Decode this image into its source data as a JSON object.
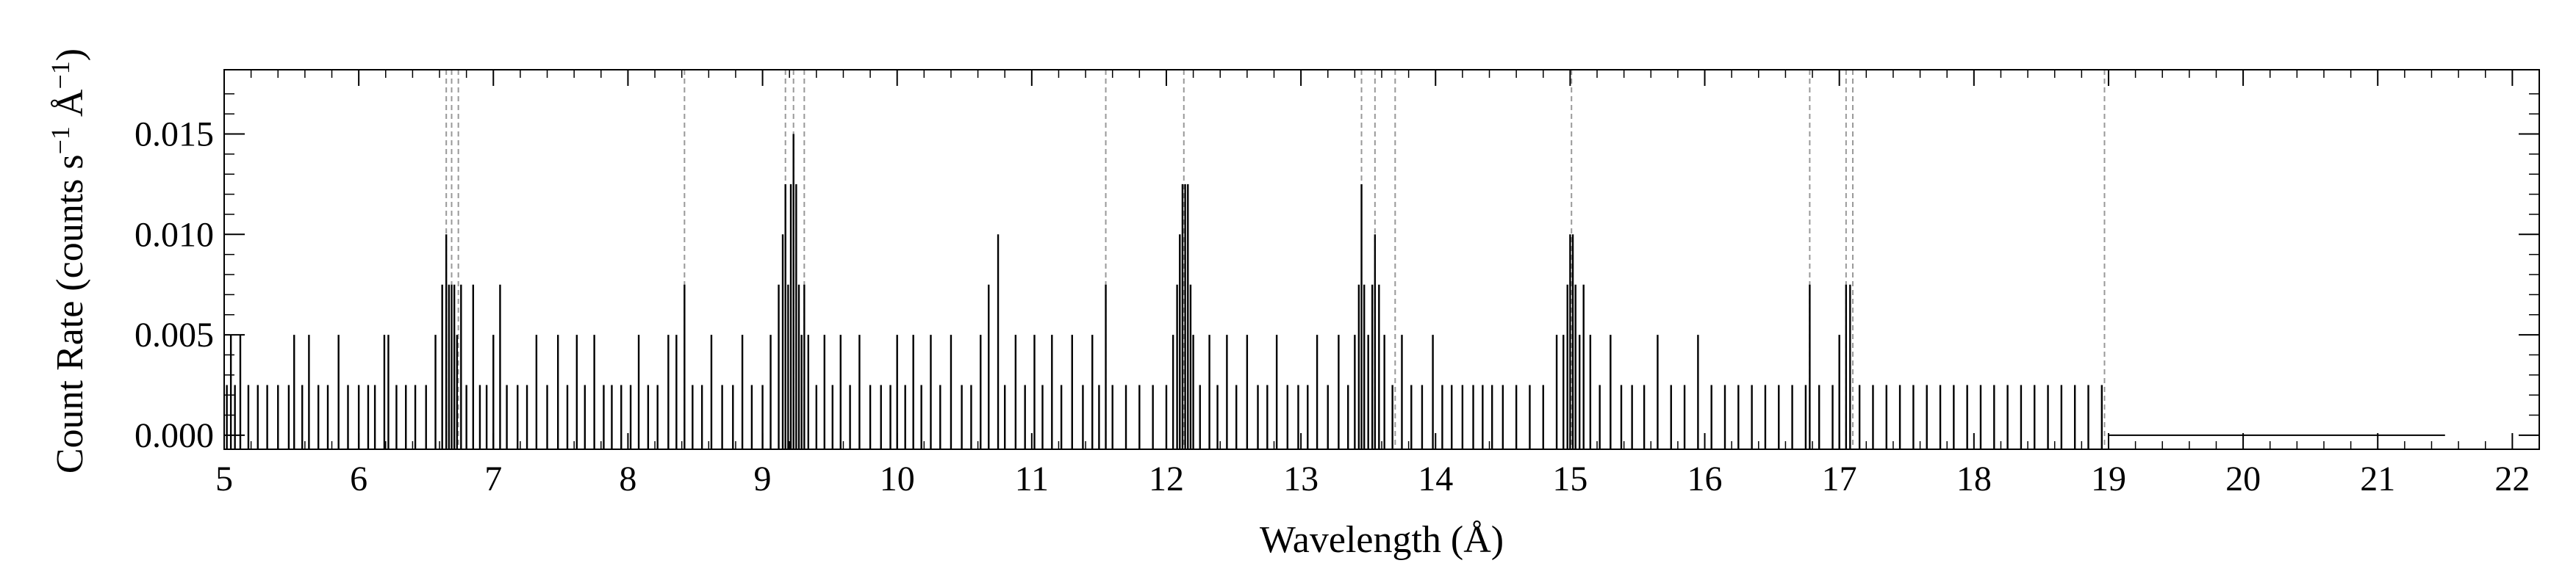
{
  "chart_data": {
    "type": "line",
    "xlabel": "Wavelength (Å)",
    "ylabel_main": "Count Rate (counts s",
    "ylabel_sup1": "−1",
    "ylabel_mid": " Å",
    "ylabel_sup2": "−1",
    "ylabel_end": ")",
    "xlim": [
      5,
      22.2
    ],
    "ylim": [
      -0.0007,
      0.0182
    ],
    "grid": false,
    "x_ticks": [
      5,
      6,
      7,
      8,
      9,
      10,
      11,
      12,
      13,
      14,
      15,
      16,
      17,
      18,
      19,
      20,
      21,
      22
    ],
    "x_tick_labels": [
      "5",
      "6",
      "7",
      "8",
      "9",
      "10",
      "11",
      "12",
      "13",
      "14",
      "15",
      "16",
      "17",
      "18",
      "19",
      "20",
      "21",
      "22"
    ],
    "y_ticks": [
      0.0,
      0.005,
      0.01,
      0.015
    ],
    "y_tick_labels": [
      "0.000",
      "0.005",
      "0.010",
      "0.015"
    ],
    "line_markers_x": [
      6.65,
      6.69,
      6.74,
      8.42,
      9.17,
      9.23,
      9.31,
      11.55,
      12.13,
      13.45,
      13.55,
      13.7,
      15.01,
      16.78,
      17.05,
      17.1,
      18.97
    ],
    "series": [
      {
        "values": [
          [
            5.02,
            0.0025
          ],
          [
            5.05,
            0.005
          ],
          [
            5.08,
            0.0025
          ],
          [
            5.12,
            0.005
          ],
          [
            5.18,
            0.0025
          ],
          [
            5.25,
            0.0025
          ],
          [
            5.32,
            0.0025
          ],
          [
            5.4,
            0.0025
          ],
          [
            5.48,
            0.0025
          ],
          [
            5.52,
            0.005
          ],
          [
            5.58,
            0.0025
          ],
          [
            5.63,
            0.005
          ],
          [
            5.7,
            0.0025
          ],
          [
            5.77,
            0.0025
          ],
          [
            5.85,
            0.005
          ],
          [
            5.92,
            0.0025
          ],
          [
            6.0,
            0.0025
          ],
          [
            6.07,
            0.0025
          ],
          [
            6.12,
            0.0025
          ],
          [
            6.19,
            0.005
          ],
          [
            6.22,
            0.005
          ],
          [
            6.28,
            0.0025
          ],
          [
            6.35,
            0.0025
          ],
          [
            6.42,
            0.0025
          ],
          [
            6.5,
            0.0025
          ],
          [
            6.57,
            0.005
          ],
          [
            6.62,
            0.0075
          ],
          [
            6.65,
            0.01
          ],
          [
            6.67,
            0.0075
          ],
          [
            6.69,
            0.0075
          ],
          [
            6.71,
            0.0075
          ],
          [
            6.73,
            0.005
          ],
          [
            6.76,
            0.0075
          ],
          [
            6.8,
            0.0025
          ],
          [
            6.85,
            0.0075
          ],
          [
            6.9,
            0.0025
          ],
          [
            6.95,
            0.0025
          ],
          [
            7.0,
            0.005
          ],
          [
            7.05,
            0.0075
          ],
          [
            7.1,
            0.0025
          ],
          [
            7.18,
            0.0025
          ],
          [
            7.25,
            0.0025
          ],
          [
            7.32,
            0.005
          ],
          [
            7.4,
            0.0025
          ],
          [
            7.48,
            0.005
          ],
          [
            7.55,
            0.0025
          ],
          [
            7.62,
            0.005
          ],
          [
            7.68,
            0.0025
          ],
          [
            7.75,
            0.005
          ],
          [
            7.82,
            0.0025
          ],
          [
            7.88,
            0.0025
          ],
          [
            7.95,
            0.0025
          ],
          [
            8.02,
            0.0025
          ],
          [
            8.08,
            0.005
          ],
          [
            8.15,
            0.0025
          ],
          [
            8.22,
            0.0025
          ],
          [
            8.3,
            0.005
          ],
          [
            8.36,
            0.005
          ],
          [
            8.42,
            0.0075
          ],
          [
            8.48,
            0.0025
          ],
          [
            8.55,
            0.0025
          ],
          [
            8.62,
            0.005
          ],
          [
            8.7,
            0.0025
          ],
          [
            8.78,
            0.0025
          ],
          [
            8.85,
            0.005
          ],
          [
            8.92,
            0.0025
          ],
          [
            9.0,
            0.0025
          ],
          [
            9.06,
            0.005
          ],
          [
            9.12,
            0.0075
          ],
          [
            9.15,
            0.01
          ],
          [
            9.17,
            0.0125
          ],
          [
            9.19,
            0.0075
          ],
          [
            9.21,
            0.0125
          ],
          [
            9.23,
            0.015
          ],
          [
            9.25,
            0.0125
          ],
          [
            9.27,
            0.0075
          ],
          [
            9.29,
            0.005
          ],
          [
            9.31,
            0.0075
          ],
          [
            9.34,
            0.005
          ],
          [
            9.4,
            0.0025
          ],
          [
            9.46,
            0.005
          ],
          [
            9.52,
            0.0025
          ],
          [
            9.58,
            0.005
          ],
          [
            9.65,
            0.0025
          ],
          [
            9.72,
            0.005
          ],
          [
            9.8,
            0.0025
          ],
          [
            9.88,
            0.0025
          ],
          [
            9.95,
            0.0025
          ],
          [
            10.0,
            0.005
          ],
          [
            10.06,
            0.0025
          ],
          [
            10.12,
            0.005
          ],
          [
            10.18,
            0.0025
          ],
          [
            10.25,
            0.005
          ],
          [
            10.32,
            0.0025
          ],
          [
            10.4,
            0.005
          ],
          [
            10.48,
            0.0025
          ],
          [
            10.55,
            0.0025
          ],
          [
            10.62,
            0.005
          ],
          [
            10.68,
            0.0075
          ],
          [
            10.75,
            0.01
          ],
          [
            10.8,
            0.0025
          ],
          [
            10.88,
            0.005
          ],
          [
            10.95,
            0.0025
          ],
          [
            11.02,
            0.005
          ],
          [
            11.08,
            0.0025
          ],
          [
            11.15,
            0.005
          ],
          [
            11.22,
            0.0025
          ],
          [
            11.3,
            0.005
          ],
          [
            11.38,
            0.0025
          ],
          [
            11.45,
            0.005
          ],
          [
            11.5,
            0.0025
          ],
          [
            11.55,
            0.0075
          ],
          [
            11.6,
            0.0025
          ],
          [
            11.7,
            0.0025
          ],
          [
            11.8,
            0.0025
          ],
          [
            11.9,
            0.0025
          ],
          [
            12.0,
            0.0025
          ],
          [
            12.05,
            0.005
          ],
          [
            12.08,
            0.0075
          ],
          [
            12.1,
            0.01
          ],
          [
            12.12,
            0.0125
          ],
          [
            12.14,
            0.0125
          ],
          [
            12.16,
            0.0125
          ],
          [
            12.18,
            0.0075
          ],
          [
            12.2,
            0.005
          ],
          [
            12.25,
            0.0025
          ],
          [
            12.32,
            0.005
          ],
          [
            12.38,
            0.0025
          ],
          [
            12.45,
            0.005
          ],
          [
            12.52,
            0.0025
          ],
          [
            12.6,
            0.005
          ],
          [
            12.68,
            0.0025
          ],
          [
            12.75,
            0.0025
          ],
          [
            12.82,
            0.005
          ],
          [
            12.9,
            0.0025
          ],
          [
            12.98,
            0.0025
          ],
          [
            13.05,
            0.0025
          ],
          [
            13.12,
            0.005
          ],
          [
            13.2,
            0.0025
          ],
          [
            13.28,
            0.005
          ],
          [
            13.35,
            0.0025
          ],
          [
            13.4,
            0.005
          ],
          [
            13.43,
            0.0075
          ],
          [
            13.45,
            0.0125
          ],
          [
            13.47,
            0.0075
          ],
          [
            13.5,
            0.005
          ],
          [
            13.53,
            0.0075
          ],
          [
            13.55,
            0.01
          ],
          [
            13.58,
            0.0075
          ],
          [
            13.62,
            0.005
          ],
          [
            13.68,
            0.0025
          ],
          [
            13.75,
            0.005
          ],
          [
            13.82,
            0.0025
          ],
          [
            13.9,
            0.0025
          ],
          [
            13.98,
            0.005
          ],
          [
            14.05,
            0.0025
          ],
          [
            14.12,
            0.0025
          ],
          [
            14.2,
            0.0025
          ],
          [
            14.28,
            0.0025
          ],
          [
            14.35,
            0.0025
          ],
          [
            14.42,
            0.0025
          ],
          [
            14.5,
            0.0025
          ],
          [
            14.6,
            0.0025
          ],
          [
            14.7,
            0.0025
          ],
          [
            14.8,
            0.0025
          ],
          [
            14.9,
            0.005
          ],
          [
            14.95,
            0.005
          ],
          [
            14.98,
            0.0075
          ],
          [
            15.0,
            0.01
          ],
          [
            15.02,
            0.01
          ],
          [
            15.04,
            0.0075
          ],
          [
            15.07,
            0.005
          ],
          [
            15.1,
            0.0075
          ],
          [
            15.15,
            0.005
          ],
          [
            15.22,
            0.0025
          ],
          [
            15.3,
            0.005
          ],
          [
            15.38,
            0.0025
          ],
          [
            15.46,
            0.0025
          ],
          [
            15.55,
            0.0025
          ],
          [
            15.65,
            0.005
          ],
          [
            15.75,
            0.0025
          ],
          [
            15.85,
            0.0025
          ],
          [
            15.95,
            0.005
          ],
          [
            16.05,
            0.0025
          ],
          [
            16.15,
            0.0025
          ],
          [
            16.25,
            0.0025
          ],
          [
            16.35,
            0.0025
          ],
          [
            16.45,
            0.0025
          ],
          [
            16.55,
            0.0025
          ],
          [
            16.65,
            0.0025
          ],
          [
            16.75,
            0.0025
          ],
          [
            16.78,
            0.0075
          ],
          [
            16.85,
            0.0025
          ],
          [
            16.95,
            0.0025
          ],
          [
            17.0,
            0.005
          ],
          [
            17.05,
            0.0075
          ],
          [
            17.08,
            0.0075
          ],
          [
            17.15,
            0.0025
          ],
          [
            17.25,
            0.0025
          ],
          [
            17.35,
            0.0025
          ],
          [
            17.45,
            0.0025
          ],
          [
            17.55,
            0.0025
          ],
          [
            17.65,
            0.0025
          ],
          [
            17.75,
            0.0025
          ],
          [
            17.85,
            0.0025
          ],
          [
            17.95,
            0.0025
          ],
          [
            18.05,
            0.0025
          ],
          [
            18.15,
            0.0025
          ],
          [
            18.25,
            0.0025
          ],
          [
            18.35,
            0.0025
          ],
          [
            18.45,
            0.0025
          ],
          [
            18.55,
            0.0025
          ],
          [
            18.65,
            0.0025
          ],
          [
            18.75,
            0.0025
          ],
          [
            18.85,
            0.0025
          ],
          [
            18.95,
            0.0025
          ]
        ]
      }
    ]
  }
}
